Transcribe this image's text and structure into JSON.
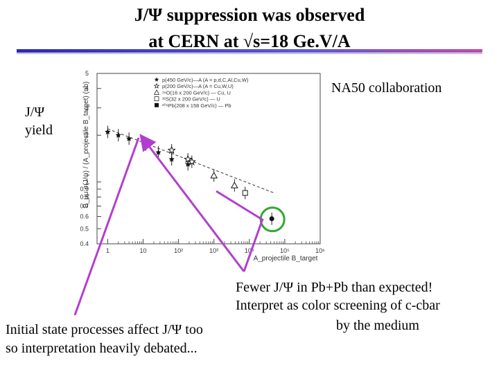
{
  "slide": {
    "title_line1": "J/Ψ suppression was observed",
    "title_line2": "at CERN at √s=18 Ge.V/A",
    "yield_label_1": "J/Ψ",
    "yield_label_2": "yield",
    "collaboration": "NA50 collaboration",
    "note_fewer": "Fewer J/Ψ in Pb+Pb than expected!",
    "note_interpret": "Interpret as color screening of c-cbar",
    "note_medium": "by the medium",
    "note_initial_1": "Initial state processes affect J/Ψ too",
    "note_initial_2": "so interpretation heavily debated...",
    "colors": {
      "arrow": "#b23ed0",
      "circle": "#2fa82f",
      "rule": "#2b2bb0"
    }
  },
  "chart_data": {
    "type": "scatter",
    "xlabel": "A_projectile B_target",
    "ylabel": "B_μμ σ(J/ψ) / (A_projectile B_target)  (nb)",
    "xscale": "log",
    "yscale": "log",
    "xlim": [
      0.5,
      1000000
    ],
    "ylim": [
      0.4,
      5
    ],
    "x_ticks": [
      "1",
      "10",
      "10²",
      "10³",
      "10⁴",
      "10⁵",
      "10⁶"
    ],
    "y_ticks": [
      "0.4",
      "0.5",
      "0.6",
      "0.7",
      "0.8",
      "0.9",
      "1",
      "2",
      "3",
      "4",
      "5"
    ],
    "legend_position": "top-right",
    "legend": [
      "p(450 GeV/c)—A (A = p,d,C,Al,Cu,W)",
      "p(200 GeV/c)—A (A = Cu,W,U)",
      "¹⁶O(16 x 200 GeV/c) — Cu, U",
      "³²S(32 x 200 GeV/c) — U",
      "²⁰⁸Pb(208 x 158 GeV/c) — Pb"
    ],
    "series": [
      {
        "name": "p(450 GeV/c)—A (A = p,d,C,Al,Cu,W)",
        "marker": "star",
        "x": [
          1,
          2,
          4,
          12,
          27,
          64,
          184
        ],
        "y": [
          2.1,
          2.0,
          1.9,
          1.75,
          1.55,
          1.4,
          1.3
        ]
      },
      {
        "name": "p(200 GeV/c)—A (A = Cu,W,U)",
        "marker": "open-star",
        "x": [
          64,
          184,
          238
        ],
        "y": [
          1.6,
          1.4,
          1.35
        ]
      },
      {
        "name": "¹⁶O(16 x 200 GeV/c) — Cu, U",
        "marker": "open-triangle",
        "x": [
          1000,
          3800
        ],
        "y": [
          1.1,
          0.95
        ]
      },
      {
        "name": "³²S(32 x 200 GeV/c) — U",
        "marker": "open-square",
        "x": [
          7600
        ],
        "y": [
          0.85
        ]
      },
      {
        "name": "²⁰⁸Pb(208 x 158 GeV/c) — Pb",
        "marker": "filled-circle",
        "x": [
          43000
        ],
        "y": [
          0.58
        ]
      }
    ],
    "fit_line": {
      "x": [
        1,
        50000
      ],
      "y": [
        2.2,
        0.85
      ]
    }
  }
}
